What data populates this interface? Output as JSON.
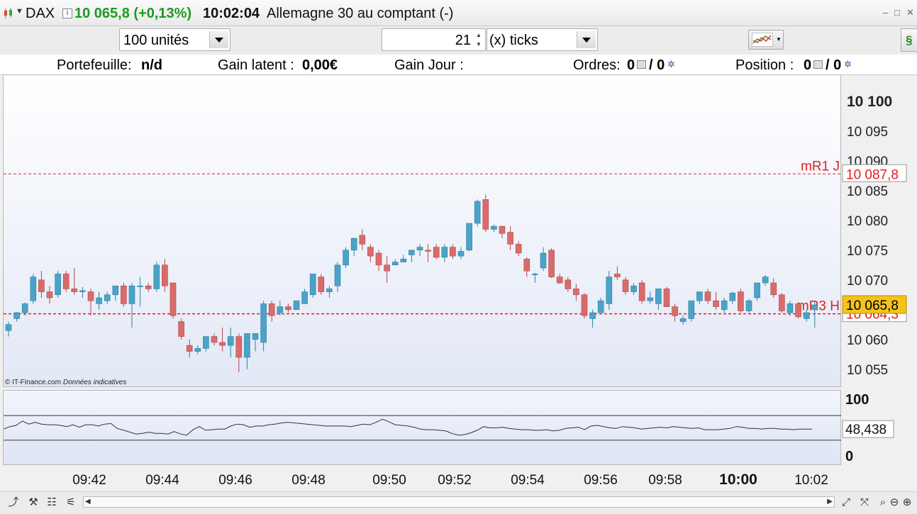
{
  "title": {
    "symbol": "DAX",
    "price_change": "10 065,8 (+0,13%)",
    "time": "10:02:04",
    "description": "Allemagne 30 au comptant (-)",
    "window_buttons": [
      "–",
      "□",
      "✕"
    ]
  },
  "toolbar": {
    "quantity": "100 unités",
    "ticks_value": "21",
    "ticks_unit": "(x) ticks"
  },
  "info": {
    "portefeuille_label": "Portefeuille:",
    "portefeuille_value": "n/d",
    "gain_latent_label": "Gain latent :",
    "gain_latent_value": "0,00€",
    "gain_jour_label": "Gain Jour :",
    "ordres_label": "Ordres:",
    "ordres_a": "0",
    "ordres_b": "/ 0",
    "position_label": "Position :",
    "position_a": "0",
    "position_b": "/ 0"
  },
  "chart": {
    "credit": "© IT-Finance.com",
    "credit_note": "Données indicatives",
    "levels": [
      {
        "name": "mR1 J",
        "value": "10 087,8",
        "price": 10087.8
      },
      {
        "name": "mR3 H",
        "value": "10 064,3",
        "price": 10064.3
      }
    ],
    "last_price_label": "10 065,8",
    "last_price": 10065.8
  },
  "chart_data": {
    "type": "candlestick",
    "y_ticks": [
      "10 100",
      "10 095",
      "10 090",
      "10 085",
      "10 080",
      "10 075",
      "10 070",
      "10 065",
      "10 060",
      "10 055"
    ],
    "y_tick_values": [
      10100,
      10095,
      10090,
      10085,
      10080,
      10075,
      10070,
      10065,
      10060,
      10055
    ],
    "x_ticks": [
      "09:42",
      "09:44",
      "09:46",
      "09:48",
      "09:50",
      "09:52",
      "09:54",
      "09:56",
      "09:58",
      "10:00",
      "10:02"
    ],
    "x_tick_bold": "10:00",
    "candles": [
      [
        10061.5,
        10063,
        10060.5,
        10062.5
      ],
      [
        10063.5,
        10064.6,
        10063,
        10064.5
      ],
      [
        10064.5,
        10066.2,
        10064,
        10066
      ],
      [
        10066.5,
        10071,
        10066,
        10070.5
      ],
      [
        10070,
        10071.5,
        10067,
        10068
      ],
      [
        10068,
        10069,
        10066,
        10067
      ],
      [
        10067.5,
        10071.5,
        10067,
        10071
      ],
      [
        10071,
        10071.5,
        10068,
        10068.5
      ],
      [
        10068.5,
        10072,
        10067.5,
        10068
      ],
      [
        10068,
        10068.8,
        10067,
        10068.2
      ],
      [
        10068,
        10068.5,
        10064,
        10066.5
      ],
      [
        10066,
        10068,
        10065,
        10067
      ],
      [
        10066.5,
        10068,
        10066,
        10067.5
      ],
      [
        10067.5,
        10069,
        10066.5,
        10069
      ],
      [
        10069,
        10069.5,
        10065.5,
        10066
      ],
      [
        10066,
        10069.5,
        10062,
        10069
      ],
      [
        10069,
        10070.5,
        10065.5,
        10069
      ],
      [
        10069,
        10069.5,
        10068,
        10068.5
      ],
      [
        10068.5,
        10073,
        10068,
        10072.5
      ],
      [
        10072.5,
        10073.5,
        10068,
        10069
      ],
      [
        10069.5,
        10069.5,
        10063.5,
        10064
      ],
      [
        10063,
        10063.5,
        10060,
        10060.5
      ],
      [
        10059,
        10060,
        10057,
        10058
      ],
      [
        10058,
        10059,
        10057.5,
        10058.5
      ],
      [
        10058.5,
        10060.5,
        10058,
        10060.5
      ],
      [
        10060.5,
        10061,
        10059,
        10059.5
      ],
      [
        10059.5,
        10062,
        10058,
        10059
      ],
      [
        10059,
        10062,
        10057,
        10060.5
      ],
      [
        10060.5,
        10061,
        10054.5,
        10057
      ],
      [
        10057,
        10061,
        10055,
        10061
      ],
      [
        10060,
        10061,
        10058,
        10061
      ],
      [
        10059.5,
        10066.5,
        10058,
        10066
      ],
      [
        10066,
        10066.5,
        10063,
        10064
      ],
      [
        10064.5,
        10066.5,
        10064,
        10065.5
      ],
      [
        10065.5,
        10066,
        10064.5,
        10065
      ],
      [
        10065,
        10066.5,
        10065,
        10066.5
      ],
      [
        10066,
        10068.5,
        10066,
        10068
      ],
      [
        10067.5,
        10071,
        10067,
        10071
      ],
      [
        10070.5,
        10071,
        10067.5,
        10068
      ],
      [
        10068,
        10069,
        10067,
        10068.5
      ],
      [
        10069,
        10073,
        10068,
        10072.5
      ],
      [
        10072.5,
        10075.5,
        10072,
        10075
      ],
      [
        10075,
        10077,
        10074,
        10077
      ],
      [
        10077.5,
        10078.5,
        10075,
        10076
      ],
      [
        10075.5,
        10076,
        10073,
        10074
      ],
      [
        10074.5,
        10075,
        10071.5,
        10072.5
      ],
      [
        10072.5,
        10074,
        10069.5,
        10071.5
      ],
      [
        10072.5,
        10073.5,
        10072.5,
        10073
      ],
      [
        10073,
        10074.2,
        10073,
        10073.5
      ],
      [
        10074.2,
        10075,
        10073,
        10075
      ],
      [
        10075,
        10076,
        10074,
        10075.5
      ],
      [
        10075,
        10076,
        10073,
        10074.8
      ],
      [
        10075.5,
        10076,
        10073.5,
        10073.8
      ],
      [
        10073.8,
        10076,
        10073,
        10075.5
      ],
      [
        10075.5,
        10076,
        10073.5,
        10074
      ],
      [
        10074,
        10075.5,
        10073.5,
        10074.8
      ],
      [
        10075,
        10079.5,
        10074.8,
        10079.5
      ],
      [
        10079.5,
        10083.5,
        10079,
        10083.2
      ],
      [
        10083.5,
        10084.3,
        10078,
        10078.5
      ],
      [
        10078.5,
        10079.3,
        10078,
        10079
      ],
      [
        10079,
        10079,
        10077,
        10077.8
      ],
      [
        10078,
        10079,
        10075,
        10076
      ],
      [
        10076,
        10076.5,
        10074,
        10074.5
      ],
      [
        10073.5,
        10073.8,
        10070.5,
        10071.5
      ],
      [
        10071,
        10071.2,
        10069.5,
        10071
      ],
      [
        10072,
        10075.5,
        10071.5,
        10074.5
      ],
      [
        10075,
        10075.3,
        10070.3,
        10070.5
      ],
      [
        10070.5,
        10071,
        10069.3,
        10069.5
      ],
      [
        10070,
        10070.5,
        10068,
        10068.5
      ],
      [
        10068.5,
        10069.3,
        10066.5,
        10067.5
      ],
      [
        10067.5,
        10067.8,
        10063.5,
        10064
      ],
      [
        10063.5,
        10065,
        10062,
        10064.5
      ],
      [
        10064.5,
        10067,
        10064.5,
        10066.5
      ],
      [
        10066,
        10071.5,
        10065,
        10070.5
      ],
      [
        10071,
        10072.3,
        10070,
        10070.5
      ],
      [
        10070,
        10070.5,
        10067.5,
        10068
      ],
      [
        10068,
        10069.5,
        10067.5,
        10069
      ],
      [
        10069.5,
        10070,
        10066,
        10066.5
      ],
      [
        10066.5,
        10068,
        10066,
        10067
      ],
      [
        10066,
        10068.5,
        10065,
        10068.5
      ],
      [
        10068.5,
        10068.8,
        10065.5,
        10065.5
      ],
      [
        10065.5,
        10066,
        10063,
        10064
      ],
      [
        10063,
        10064,
        10062.5,
        10063.5
      ],
      [
        10063.5,
        10066.5,
        10063,
        10066.5
      ],
      [
        10066.5,
        10068,
        10066,
        10068
      ],
      [
        10068,
        10068.5,
        10066,
        10066.5
      ],
      [
        10066.5,
        10068,
        10065,
        10065.5
      ],
      [
        10065,
        10067,
        10064.5,
        10066.5
      ],
      [
        10066.5,
        10068,
        10066,
        10067.8
      ],
      [
        10068,
        10068.5,
        10064.5,
        10064.8
      ],
      [
        10064.8,
        10066.8,
        10064.5,
        10066.5
      ],
      [
        10067,
        10069.5,
        10066.5,
        10069.5
      ],
      [
        10069.5,
        10070.8,
        10069,
        10070.5
      ],
      [
        10069.5,
        10070.3,
        10067,
        10067.5
      ],
      [
        10067.5,
        10067.8,
        10064.5,
        10064.8
      ],
      [
        10064.5,
        10066.5,
        10064,
        10066
      ],
      [
        10066,
        10066.3,
        10063.5,
        10063.8
      ],
      [
        10063.5,
        10065,
        10063,
        10064.5
      ],
      [
        10065,
        10066.5,
        10062,
        10065.8
      ]
    ],
    "y_range": [
      10052,
      10104.5
    ]
  },
  "oscillator": {
    "label_top": "100",
    "label_bottom": "0",
    "value_label": "48,438",
    "level_high": 70,
    "level_low": 30,
    "values": [
      48,
      52,
      54,
      61,
      56,
      59,
      56,
      55,
      55,
      54,
      52,
      55,
      51,
      55,
      55,
      53,
      56,
      57,
      49,
      46,
      43,
      40,
      41,
      43,
      41,
      41,
      40,
      44,
      40,
      38,
      47,
      52,
      46,
      47,
      48,
      48,
      53,
      56,
      55,
      51,
      53,
      53,
      55,
      56,
      58,
      59,
      58,
      57,
      56,
      55,
      54,
      53,
      53,
      53,
      53,
      52,
      54,
      56,
      55,
      59,
      64,
      60,
      55,
      54,
      53,
      51,
      48,
      47,
      47,
      46,
      45,
      41,
      38,
      39,
      42,
      46,
      52,
      50,
      50,
      51,
      49,
      48,
      47,
      47,
      46,
      46,
      47,
      45,
      46,
      49,
      50,
      51,
      47,
      53,
      54,
      52,
      50,
      49,
      52,
      51,
      50,
      48,
      49,
      50,
      51,
      50,
      52,
      51,
      50,
      49,
      50,
      47,
      47,
      47,
      48,
      49,
      52,
      51,
      49,
      49,
      48,
      49,
      49,
      48,
      48,
      47,
      48,
      48,
      48
    ]
  },
  "status": {
    "icons": [
      "chart-trend-icon",
      "wrench-icon",
      "list-icon",
      "indicators-icon"
    ],
    "right_icons": [
      "expand-icon",
      "fit-icon",
      "zoom-search-icon",
      "zoom-out-icon",
      "zoom-in-icon"
    ]
  }
}
